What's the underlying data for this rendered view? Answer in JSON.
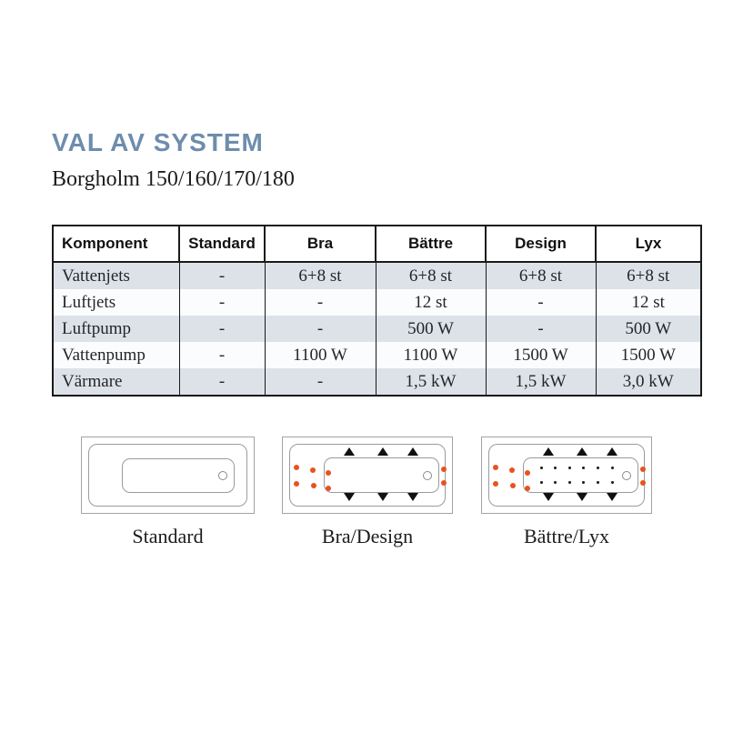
{
  "page": {
    "title": "VAL AV SYSTEM",
    "subtitle": "Borgholm 150/160/170/180"
  },
  "colors": {
    "title_blue": "#6d8dac",
    "row_shade": "#dde2e9",
    "water_jet_orange": "#e8531c",
    "air_jet_black": "#1a1a1a"
  },
  "table": {
    "columns": [
      "Komponent",
      "Standard",
      "Bra",
      "Bättre",
      "Design",
      "Lyx"
    ],
    "rows": [
      {
        "label": "Vattenjets",
        "values": [
          "-",
          "6+8 st",
          "6+8 st",
          "6+8 st",
          "6+8 st"
        ]
      },
      {
        "label": "Luftjets",
        "values": [
          "-",
          "-",
          "12 st",
          "-",
          "12 st"
        ]
      },
      {
        "label": "Luftpump",
        "values": [
          "-",
          "-",
          "500 W",
          "-",
          "500 W"
        ]
      },
      {
        "label": "Vattenpump",
        "values": [
          "-",
          "1100 W",
          "1100 W",
          "1500 W",
          "1500 W"
        ]
      },
      {
        "label": "Värmare",
        "values": [
          "-",
          "-",
          "1,5 kW",
          "1,5 kW",
          "3,0 kW"
        ]
      }
    ]
  },
  "diagrams": [
    {
      "label": "Standard",
      "water_jets": false,
      "air_jets": false
    },
    {
      "label": "Bra/Design",
      "water_jets": true,
      "air_jets": false
    },
    {
      "label": "Bättre/Lyx",
      "water_jets": true,
      "air_jets": true
    }
  ]
}
